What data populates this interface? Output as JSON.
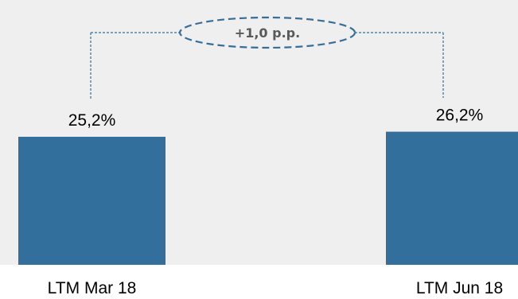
{
  "chart_data": {
    "type": "bar",
    "categories": [
      "LTM Mar 18",
      "LTM Jun 18"
    ],
    "values": [
      25.2,
      26.2
    ],
    "value_labels": [
      "25,2%",
      "26,2%"
    ],
    "unit": "%",
    "annotation": {
      "text": "+1,0 p.p.",
      "shape": "dashed-ellipse",
      "connects": [
        "LTM Mar 18",
        "LTM Jun 18"
      ]
    },
    "colors": {
      "bar": "#336f9c",
      "plot_background": "#efefef",
      "annotation_stroke": "#336f9c",
      "annotation_text": "#595959"
    }
  }
}
